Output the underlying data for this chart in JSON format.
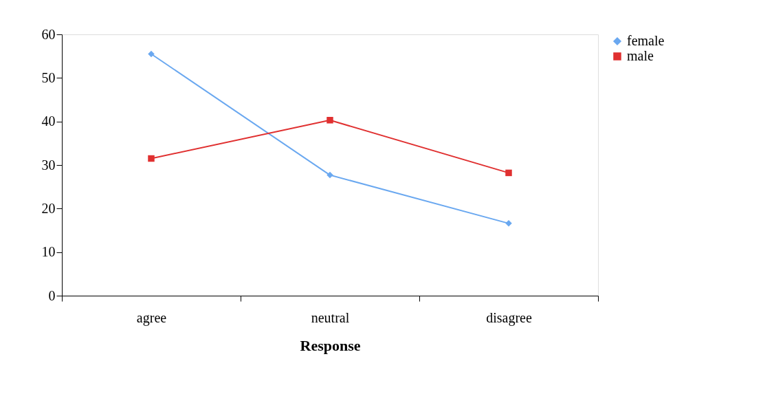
{
  "chart_data": {
    "type": "line",
    "xlabel": "Response",
    "categories": [
      "agree",
      "neutral",
      "disagree"
    ],
    "series": [
      {
        "name": "female",
        "color": "#6aa8f0",
        "marker": "diamond",
        "values": [
          55.5,
          27.7,
          16.6
        ]
      },
      {
        "name": "male",
        "color": "#e03030",
        "marker": "square",
        "values": [
          31.5,
          40.3,
          28.2
        ]
      }
    ],
    "ylim": [
      0,
      60
    ],
    "yticks": [
      0,
      10,
      20,
      30,
      40,
      50,
      60
    ],
    "grid": false,
    "legend": "right",
    "line_style": "solid"
  }
}
